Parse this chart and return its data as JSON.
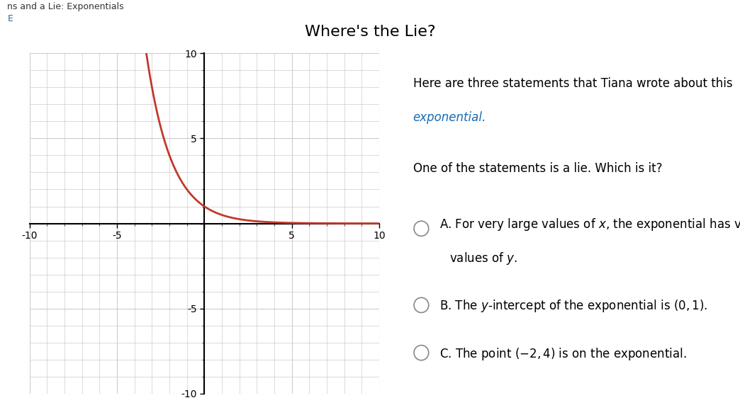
{
  "title": "Where's the Lie?",
  "title_fontsize": 16,
  "title_color": "#000000",
  "header_text": "ns and a Lie: Exponentials",
  "header_subtext": "E",
  "description_line1": "Here are three statements that Tiana wrote about this",
  "description_line2": "exponential.",
  "question": "One of the statements is a lie. Which is it?",
  "graph_xlim": [
    -10,
    10
  ],
  "graph_ylim": [
    -10,
    10
  ],
  "graph_xticks": [
    -10,
    -5,
    0,
    5,
    10
  ],
  "graph_yticks": [
    -10,
    -5,
    0,
    5,
    10
  ],
  "curve_color": "#c0392b",
  "curve_linewidth": 2.0,
  "grid_color": "#cccccc",
  "axis_color": "#000000",
  "background_color": "#ffffff",
  "text_color": "#000000",
  "option_text_size": 12,
  "description_text_size": 12,
  "question_text_size": 12
}
